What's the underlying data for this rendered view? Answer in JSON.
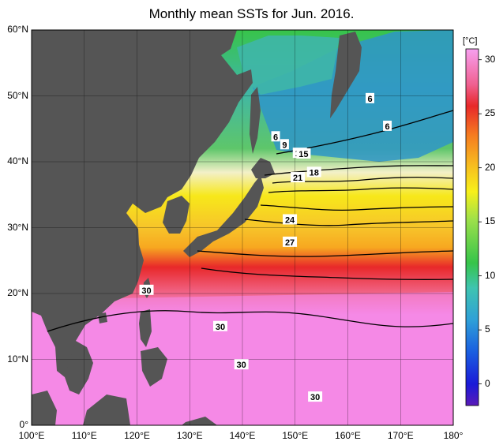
{
  "title": "Monthly mean SSTs for Jun. 2016.",
  "colors": {
    "land": "#555555",
    "ocean_warm": "#f589e6",
    "ocean_red": "#e8282a",
    "ocean_orange": "#f7a820",
    "ocean_yellow": "#f7e81a",
    "ocean_light": "#f3f0c8",
    "ocean_green": "#38c44a",
    "ocean_teal": "#3fb6a8",
    "ocean_blue": "#2f95c8"
  },
  "axes": {
    "lat_labels": [
      "60°N",
      "50°N",
      "40°N",
      "30°N",
      "20°N",
      "10°N",
      "0°"
    ],
    "lon_labels": [
      "100°E",
      "110°E",
      "120°E",
      "130°E",
      "140°E",
      "150°E",
      "160°E",
      "170°E",
      "180°"
    ]
  },
  "colorbar": {
    "unit": "[°C]",
    "ticks": [
      "30",
      "25",
      "20",
      "15",
      "10",
      "5",
      "0"
    ],
    "tick_values": [
      30,
      25,
      20,
      15,
      10,
      5,
      0
    ],
    "min": -2,
    "max": 31
  },
  "contour_labels": [
    {
      "text": "6",
      "lon": 164.2,
      "lat": 49.6
    },
    {
      "text": "6",
      "lon": 167.5,
      "lat": 45.4
    },
    {
      "text": "6",
      "lon": 146.3,
      "lat": 43.8
    },
    {
      "text": "9",
      "lon": 148.0,
      "lat": 42.6
    },
    {
      "text": "12",
      "lon": 150.9,
      "lat": 41.3
    },
    {
      "text": "15",
      "lon": 151.6,
      "lat": 41.2
    },
    {
      "text": "18",
      "lon": 153.6,
      "lat": 38.4
    },
    {
      "text": "21",
      "lon": 150.5,
      "lat": 37.6
    },
    {
      "text": "24",
      "lon": 149.0,
      "lat": 31.2
    },
    {
      "text": "27",
      "lon": 149.0,
      "lat": 27.8
    },
    {
      "text": "30",
      "lon": 121.8,
      "lat": 20.5
    },
    {
      "text": "30",
      "lon": 135.8,
      "lat": 15.0
    },
    {
      "text": "30",
      "lon": 139.8,
      "lat": 9.2
    },
    {
      "text": "30",
      "lon": 153.8,
      "lat": 4.3
    }
  ]
}
